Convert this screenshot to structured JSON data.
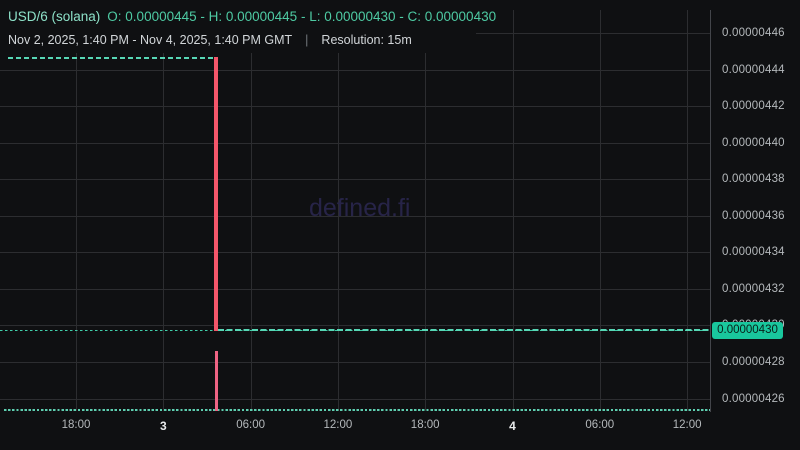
{
  "header": {
    "pair": "USD/6 (solana)",
    "ohlc": "O: 0.00000445 - H: 0.00000445 - L: 0.00000430 - C: 0.00000430",
    "date_range": "Nov 2, 2025, 1:40 PM - Nov 4, 2025, 1:40 PM GMT",
    "separator": "|",
    "resolution": "Resolution: 15m"
  },
  "watermark": "defined.fi",
  "current_price_label": "0.00000430",
  "chart_data": {
    "type": "candlestick",
    "title": "USD/6 (solana)",
    "resolution": "15m",
    "time_range": "Nov 2, 2025, 1:40 PM - Nov 4, 2025, 1:40 PM GMT",
    "timezone": "GMT",
    "grid": true,
    "legend_position": "top-left",
    "y_axis": {
      "side": "right",
      "ticks": [
        "0.00000446",
        "0.00000444",
        "0.00000442",
        "0.00000440",
        "0.00000438",
        "0.00000436",
        "0.00000434",
        "0.00000432",
        "0.00000430",
        "0.00000428",
        "0.00000426"
      ],
      "range": [
        4.25e-06,
        4.47e-06
      ]
    },
    "x_axis": {
      "ticks": [
        {
          "label": "18:00",
          "bold": false
        },
        {
          "label": "3",
          "bold": true
        },
        {
          "label": "06:00",
          "bold": false
        },
        {
          "label": "12:00",
          "bold": false
        },
        {
          "label": "18:00",
          "bold": false
        },
        {
          "label": "4",
          "bold": true
        },
        {
          "label": "06:00",
          "bold": false
        },
        {
          "label": "12:00",
          "bold": false
        }
      ]
    },
    "ohlc_summary": {
      "open": "0.00000445",
      "high": "0.00000445",
      "low": "0.00000430",
      "close": "0.00000430"
    },
    "series_events": [
      {
        "segment": "flat",
        "price": "0.00000445",
        "from": "Nov 2, 2025 1:40 PM",
        "to": "Nov 3, 2025 ~3:35 AM",
        "style": "dashed-teal"
      },
      {
        "segment": "down-candle",
        "open": "0.00000445",
        "close": "0.00000430",
        "time": "Nov 3, 2025 ~3:35 AM",
        "color": "red",
        "volume_spike": true
      },
      {
        "segment": "flat",
        "price": "0.00000430",
        "from": "Nov 3, 2025 ~3:35 AM",
        "to": "Nov 4, 2025 1:40 PM",
        "style": "dashed-teal"
      }
    ],
    "current_price": "0.00000430",
    "colors": {
      "background": "#0f1012",
      "grid": "#2c2d30",
      "series_teal": "#57d7b5",
      "down_red": "#f4566a",
      "volume_red": "#ef6484",
      "price_label_bg": "#19c79d",
      "pair_title": "#8de1c8",
      "ohlc_text": "#4ecaa3",
      "watermark": "#272448"
    }
  }
}
